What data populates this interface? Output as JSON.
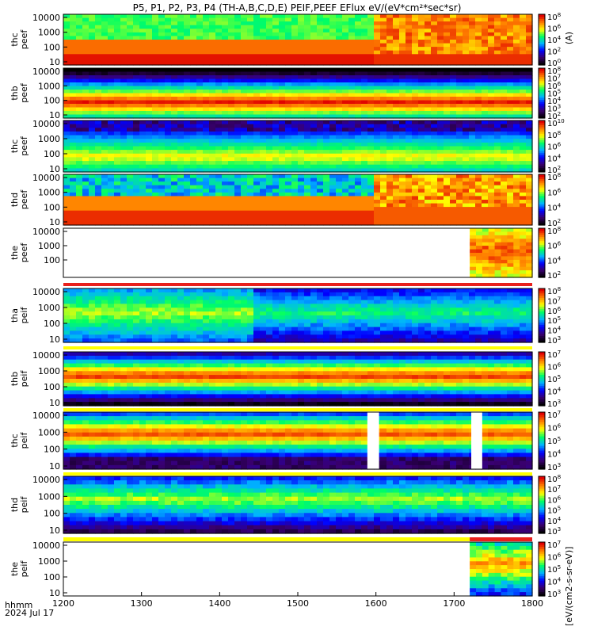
{
  "chart_data": {
    "type": "heatmap",
    "title": "P5, P1, P2, P3, P4 (TH-A,B,C,D,E) PEIF,PEEF EFlux eV/(eV*cm²*sec*sr)",
    "x_axis": {
      "range": [
        1200,
        1800
      ],
      "ticks": [
        "1200",
        "1300",
        "1400",
        "1500",
        "1600",
        "1700",
        "1800"
      ],
      "label": "hhmm",
      "date": "2024 Jul 17"
    },
    "colorbar_label_left": "[eV/(cm2-s-sr-eV)]",
    "colorbar_label_right": "(A)",
    "panels": [
      {
        "id": "thc-peef",
        "species": "electron",
        "probe": "thc",
        "ylabel": [
          "thc",
          "peef"
        ],
        "yticks": [
          "10",
          "100",
          "1000",
          "10000"
        ],
        "cbar_ticks": [
          "10^0",
          "10^2",
          "10^4",
          "10^6",
          "10^8"
        ],
        "coverage": [
          1200,
          1800
        ],
        "notes": "low energy fills red to ~1600 then orange/red bursts"
      },
      {
        "id": "thb-peef",
        "species": "electron",
        "probe": "thb",
        "ylabel": [
          "thb",
          "peef"
        ],
        "yticks": [
          "10",
          "100",
          "1000",
          "10000"
        ],
        "cbar_ticks": [
          "10^2",
          "10^3",
          "10^4",
          "10^5",
          "10^6",
          "10^7",
          "10^8"
        ],
        "coverage": [
          1200,
          1800
        ]
      },
      {
        "id": "thc-peef-2",
        "species": "electron",
        "probe": "thc",
        "ylabel": [
          "thc",
          "peef"
        ],
        "yticks": [
          "10",
          "100",
          "1000",
          "10000"
        ],
        "cbar_ticks": [
          "10^2",
          "10^4",
          "10^6",
          "10^8",
          "10^10"
        ],
        "coverage": [
          1200,
          1800
        ]
      },
      {
        "id": "thd-peef",
        "species": "electron",
        "probe": "thd",
        "ylabel": [
          "thd",
          "peef"
        ],
        "yticks": [
          "10",
          "100",
          "1000",
          "10000"
        ],
        "cbar_ticks": [
          "10^2",
          "10^4",
          "10^6",
          "10^8"
        ],
        "coverage": [
          1200,
          1800
        ]
      },
      {
        "id": "the-peef",
        "species": "electron",
        "probe": "the",
        "ylabel": [
          "the",
          "peef"
        ],
        "yticks": [
          "100",
          "1000",
          "10000"
        ],
        "cbar_ticks": [
          "10^2",
          "10^4",
          "10^6",
          "10^8"
        ],
        "coverage": [
          1720,
          1800
        ]
      },
      {
        "id": "tha-peif",
        "species": "ion",
        "probe": "tha",
        "ylabel": [
          "tha",
          "peif"
        ],
        "yticks": [
          "10",
          "100",
          "1000",
          "10000"
        ],
        "cbar_ticks": [
          "10^3",
          "10^4",
          "10^5",
          "10^6",
          "10^7",
          "10^8"
        ],
        "coverage": [
          1200,
          1800
        ]
      },
      {
        "id": "thb-peif",
        "species": "ion",
        "probe": "thb",
        "ylabel": [
          "thb",
          "peif"
        ],
        "yticks": [
          "10",
          "100",
          "1000",
          "10000"
        ],
        "cbar_ticks": [
          "10^3",
          "10^4",
          "10^5",
          "10^6",
          "10^7"
        ],
        "coverage": [
          1200,
          1800
        ]
      },
      {
        "id": "thc-peif",
        "species": "ion",
        "probe": "thc",
        "ylabel": [
          "thc",
          "peif"
        ],
        "yticks": [
          "10",
          "100",
          "1000",
          "10000"
        ],
        "cbar_ticks": [
          "10^3",
          "10^4",
          "10^5",
          "10^6",
          "10^7"
        ],
        "coverage": [
          1200,
          1800
        ],
        "gaps": [
          [
            1589,
            1604
          ],
          [
            1722,
            1736
          ]
        ]
      },
      {
        "id": "thd-peif",
        "species": "ion",
        "probe": "thd",
        "ylabel": [
          "thd",
          "peif"
        ],
        "yticks": [
          "10",
          "100",
          "1000",
          "10000"
        ],
        "cbar_ticks": [
          "10^3",
          "10^4",
          "10^5",
          "10^6",
          "10^7",
          "10^8"
        ],
        "coverage": [
          1200,
          1800
        ]
      },
      {
        "id": "the-peif",
        "species": "ion",
        "probe": "the",
        "ylabel": [
          "the",
          "peif"
        ],
        "yticks": [
          "10",
          "100",
          "1000",
          "10000"
        ],
        "cbar_ticks": [
          "10^3",
          "10^4",
          "10^5",
          "10^6",
          "10^7"
        ],
        "coverage": [
          1720,
          1800
        ]
      }
    ],
    "flag_bars": [
      {
        "after_panel": "the-peef",
        "color": "#e8201c",
        "range": [
          1200,
          1800
        ]
      },
      {
        "after_panel": "tha-peif",
        "color": "#ffff00",
        "range": [
          1200,
          1800
        ]
      },
      {
        "after_panel": "thb-peif",
        "color": "#ffff00",
        "range": [
          1200,
          1800
        ]
      },
      {
        "after_panel": "thc-peif",
        "color": "#ffff00",
        "range": [
          1200,
          1800
        ]
      },
      {
        "after_panel": "thd-peif",
        "color": "#ffff00",
        "range": [
          1200,
          1720
        ]
      },
      {
        "after_panel": "thd-peif",
        "color": "#e8201c",
        "range": [
          1720,
          1800
        ]
      }
    ],
    "colormap": [
      "#000000",
      "#3a0070",
      "#0000ff",
      "#00b4ff",
      "#00ff64",
      "#ffff00",
      "#ff8000",
      "#e00000"
    ]
  }
}
